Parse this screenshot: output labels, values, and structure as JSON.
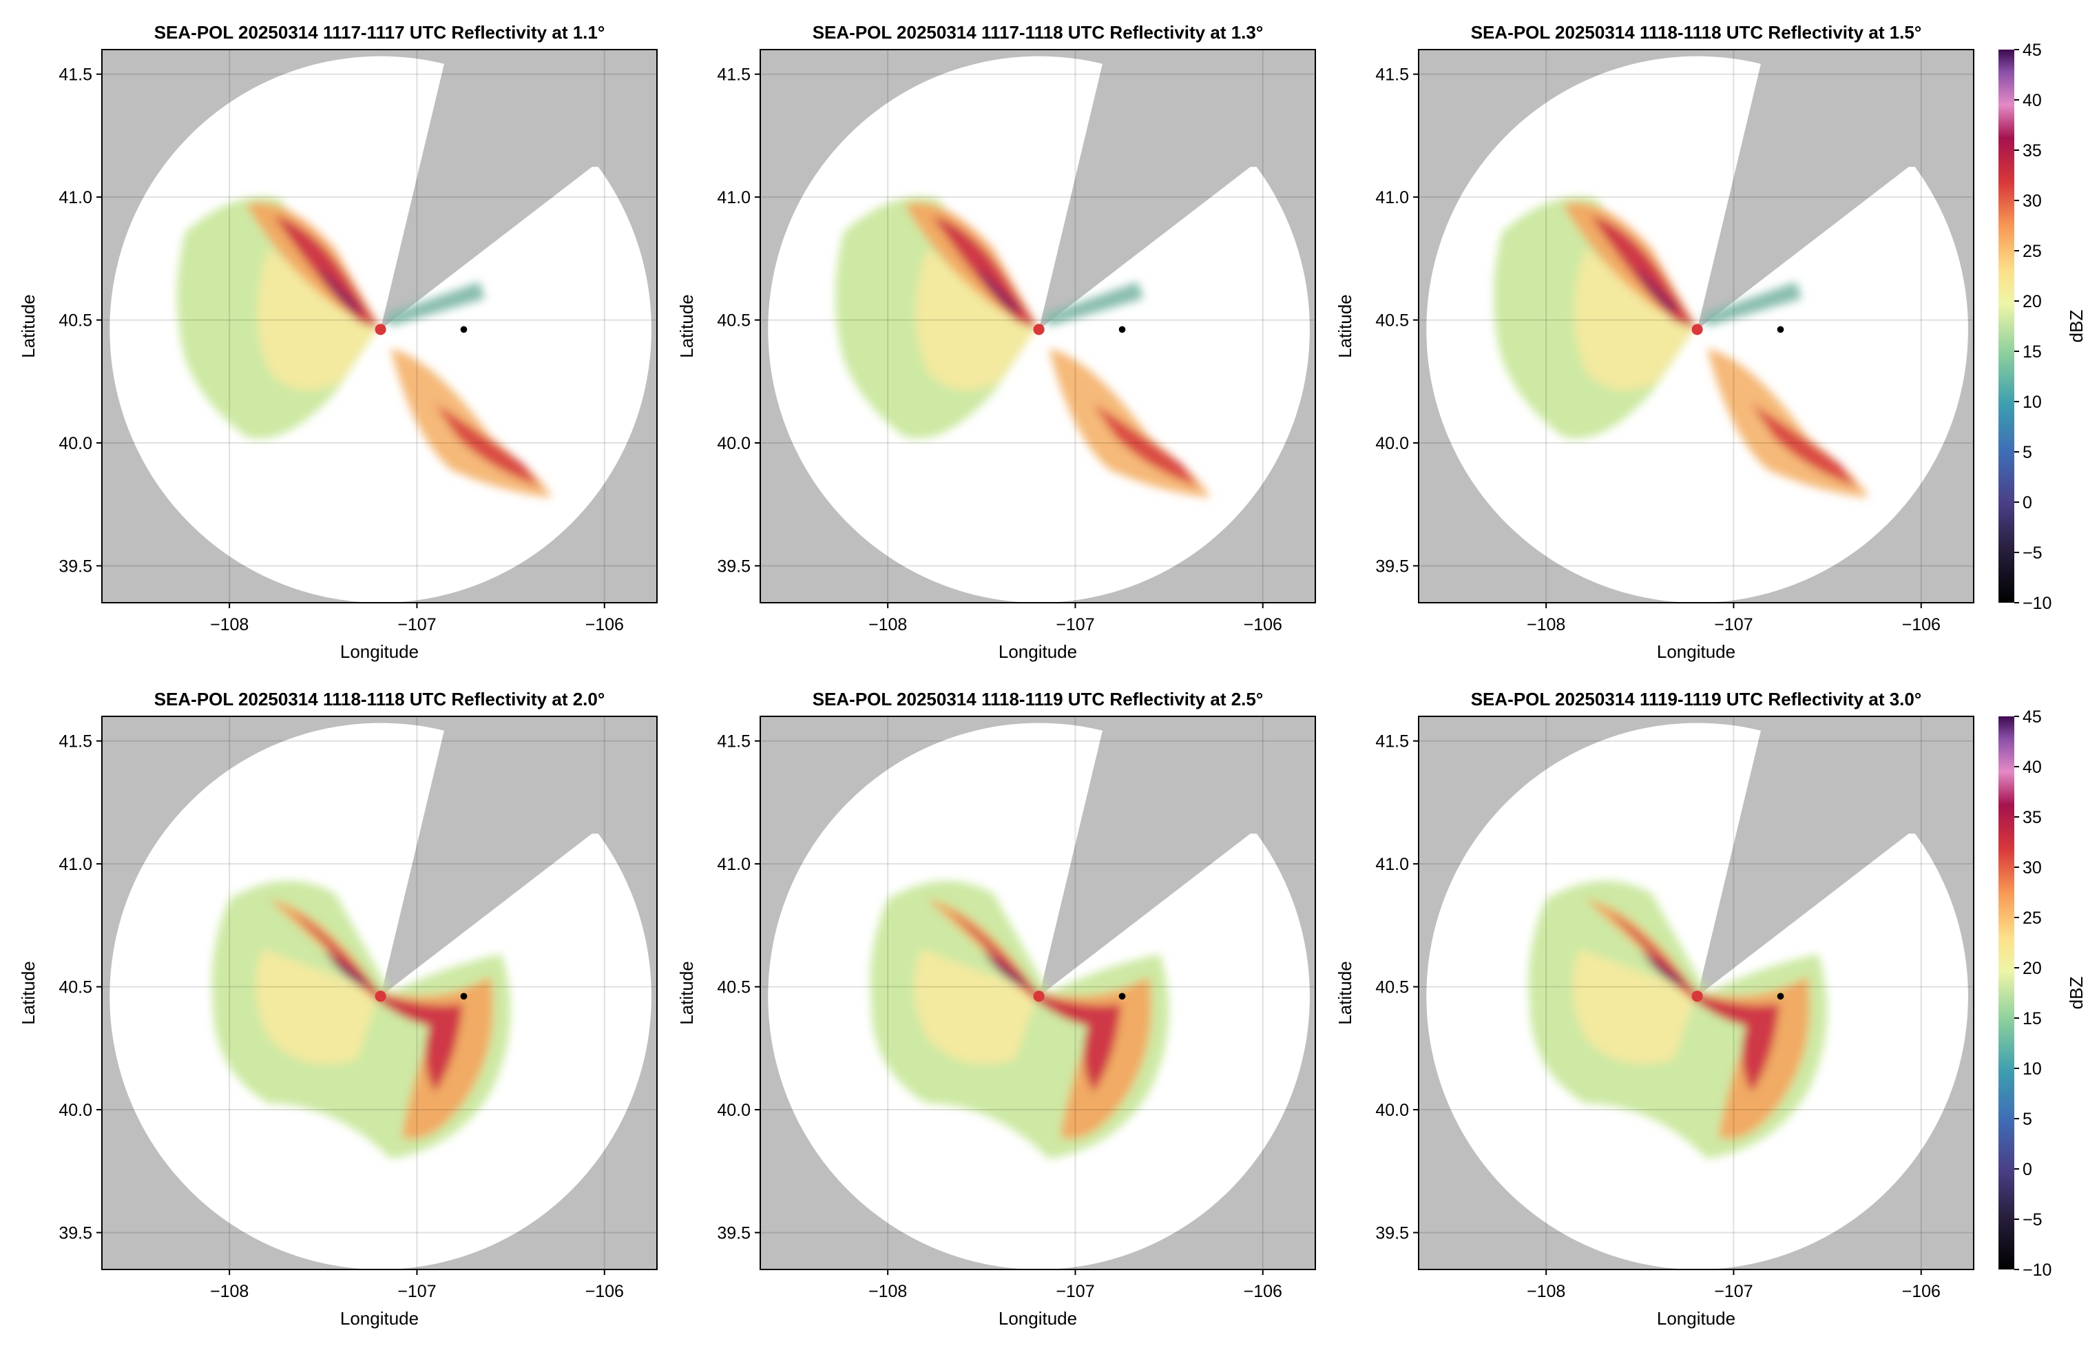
{
  "chart_data": [
    {
      "type": "radar",
      "title": "SEA-POL 20250314 1117-1117 UTC Reflectivity at 1.1°",
      "xlabel": "Longitude",
      "ylabel": "Latitude",
      "xlim": [
        -108.68,
        -105.72
      ],
      "ylim": [
        39.35,
        41.6
      ],
      "xticks": [
        {
          "value": -108,
          "label": "−108"
        },
        {
          "value": -107,
          "label": "−107"
        },
        {
          "value": -106,
          "label": "−106"
        }
      ],
      "yticks": [
        39.5,
        {
          "value": 40,
          "label": "40.0"
        },
        40.5,
        {
          "value": 41,
          "label": "41.0"
        },
        41.5
      ],
      "grid": true
    },
    {
      "type": "radar",
      "title": "SEA-POL 20250314 1117-1118 UTC Reflectivity at 1.3°",
      "xlabel": "Longitude",
      "ylabel": "Latitude",
      "xlim": [
        -108.68,
        -105.72
      ],
      "ylim": [
        39.35,
        41.6
      ],
      "xticks": [
        {
          "value": -108,
          "label": "−108"
        },
        {
          "value": -107,
          "label": "−107"
        },
        {
          "value": -106,
          "label": "−106"
        }
      ],
      "yticks": [
        39.5,
        {
          "value": 40,
          "label": "40.0"
        },
        40.5,
        {
          "value": 41,
          "label": "41.0"
        },
        41.5
      ],
      "grid": true
    },
    {
      "type": "radar",
      "title": "SEA-POL 20250314 1118-1118 UTC Reflectivity at 1.5°",
      "xlabel": "Longitude",
      "ylabel": "Latitude",
      "xlim": [
        -108.68,
        -105.72
      ],
      "ylim": [
        39.35,
        41.6
      ],
      "xticks": [
        {
          "value": -108,
          "label": "−108"
        },
        {
          "value": -107,
          "label": "−107"
        },
        {
          "value": -106,
          "label": "−106"
        }
      ],
      "yticks": [
        39.5,
        {
          "value": 40,
          "label": "40.0"
        },
        40.5,
        {
          "value": 41,
          "label": "41.0"
        },
        41.5
      ],
      "grid": true,
      "colorbar": {
        "label": "dBZ",
        "lim": [
          -10,
          45
        ],
        "ticks": [
          {
            "value": -10,
            "label": "−10"
          },
          {
            "value": -5,
            "label": "−5"
          },
          0,
          5,
          10,
          15,
          20,
          25,
          30,
          35,
          40,
          45
        ]
      }
    },
    {
      "type": "radar",
      "title": "SEA-POL 20250314 1118-1118 UTC Reflectivity at 2.0°",
      "xlabel": "Longitude",
      "ylabel": "Latitude",
      "xlim": [
        -108.68,
        -105.72
      ],
      "ylim": [
        39.35,
        41.6
      ],
      "xticks": [
        {
          "value": -108,
          "label": "−108"
        },
        {
          "value": -107,
          "label": "−107"
        },
        {
          "value": -106,
          "label": "−106"
        }
      ],
      "yticks": [
        39.5,
        {
          "value": 40,
          "label": "40.0"
        },
        40.5,
        {
          "value": 41,
          "label": "41.0"
        },
        41.5
      ],
      "grid": true
    },
    {
      "type": "radar",
      "title": "SEA-POL 20250314 1118-1119 UTC Reflectivity at 2.5°",
      "xlabel": "Longitude",
      "ylabel": "Latitude",
      "xlim": [
        -108.68,
        -105.72
      ],
      "ylim": [
        39.35,
        41.6
      ],
      "xticks": [
        {
          "value": -108,
          "label": "−108"
        },
        {
          "value": -107,
          "label": "−107"
        },
        {
          "value": -106,
          "label": "−106"
        }
      ],
      "yticks": [
        39.5,
        {
          "value": 40,
          "label": "40.0"
        },
        40.5,
        {
          "value": 41,
          "label": "41.0"
        },
        41.5
      ],
      "grid": true
    },
    {
      "type": "radar",
      "title": "SEA-POL 20250314 1119-1119 UTC Reflectivity at 3.0°",
      "xlabel": "Longitude",
      "ylabel": "Latitude",
      "xlim": [
        -108.68,
        -105.72
      ],
      "ylim": [
        39.35,
        41.6
      ],
      "xticks": [
        {
          "value": -108,
          "label": "−108"
        },
        {
          "value": -107,
          "label": "−107"
        },
        {
          "value": -106,
          "label": "−106"
        }
      ],
      "yticks": [
        39.5,
        {
          "value": 40,
          "label": "40.0"
        },
        40.5,
        {
          "value": 41,
          "label": "41.0"
        },
        41.5
      ],
      "grid": true,
      "colorbar": {
        "label": "dBZ",
        "lim": [
          -10,
          45
        ],
        "ticks": [
          {
            "value": -10,
            "label": "−10"
          },
          {
            "value": -5,
            "label": "−5"
          },
          0,
          5,
          10,
          15,
          20,
          25,
          30,
          35,
          40,
          45
        ]
      }
    }
  ]
}
